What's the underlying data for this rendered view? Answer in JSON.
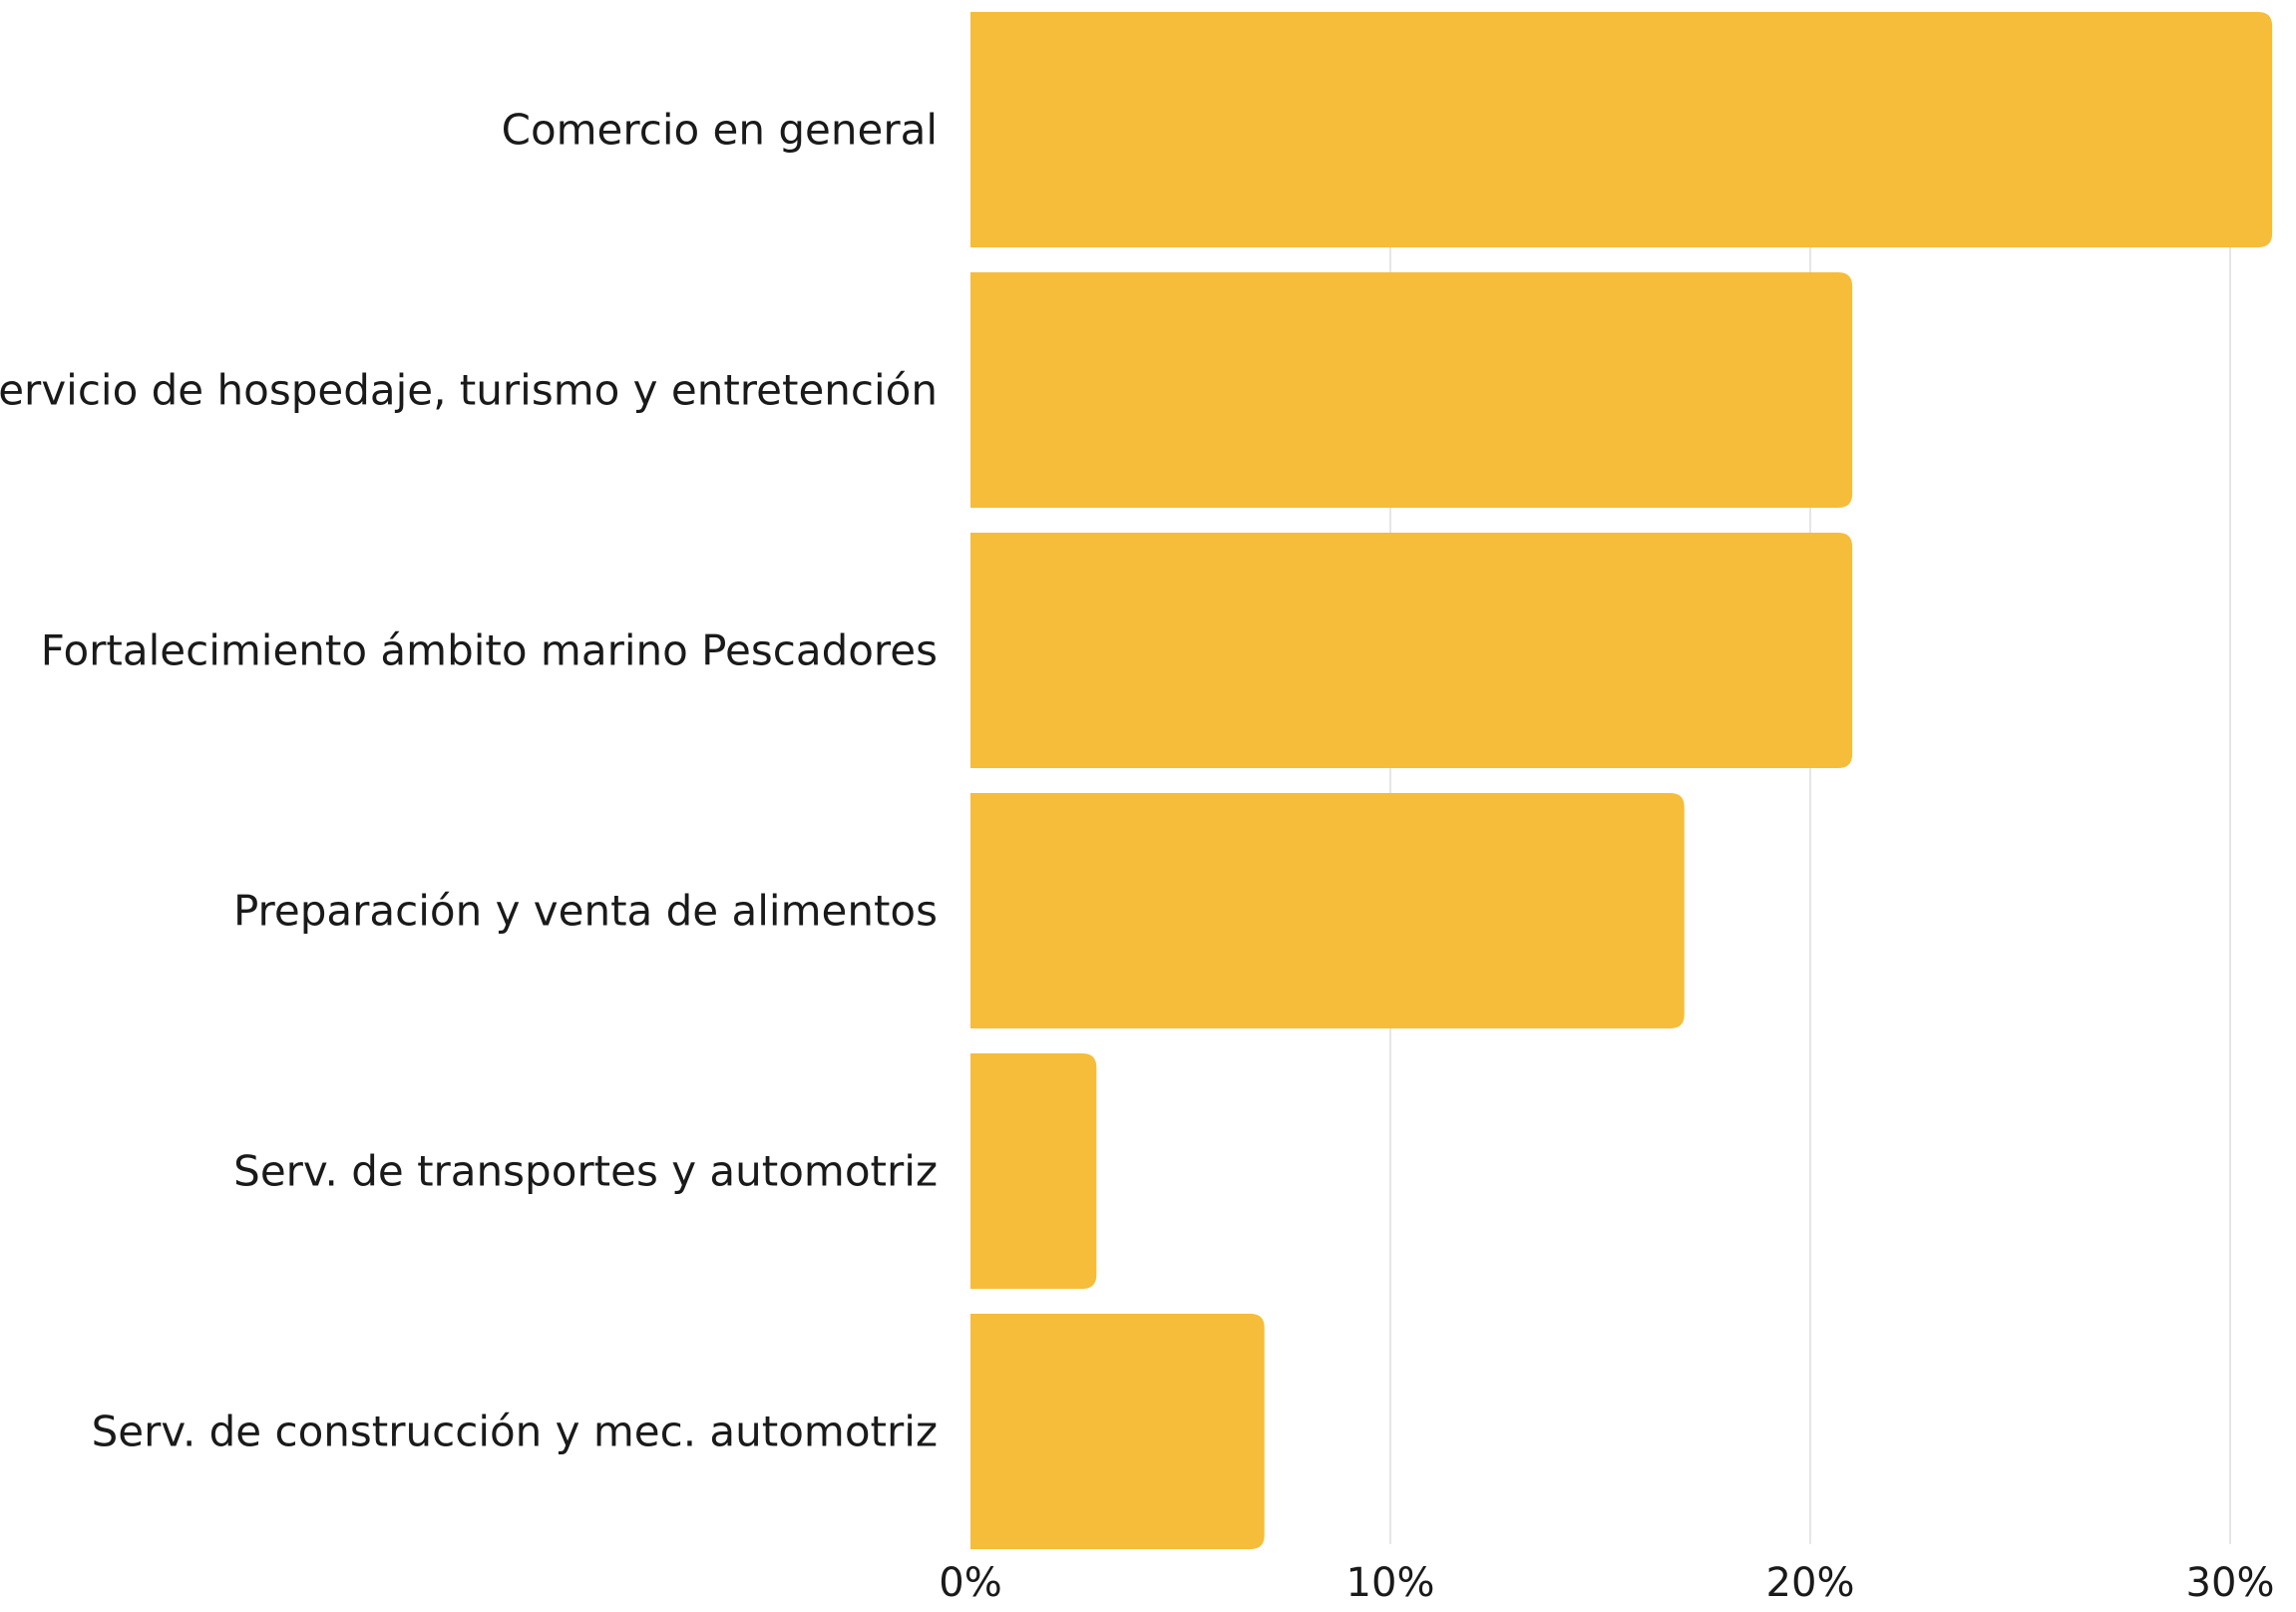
{
  "chart_data": {
    "type": "bar",
    "orientation": "horizontal",
    "title": "",
    "xlabel": "",
    "ylabel": "",
    "categories": [
      "Comercio en general",
      "Servicio de hospedaje, turismo y entretención",
      "Fortalecimiento ámbito marino Pescadores",
      "Preparación y venta de alimentos",
      "Serv. de transportes y automotriz",
      "Serv. de construcción y mec. automotriz"
    ],
    "values": [
      31,
      21,
      21,
      17,
      3,
      7
    ],
    "xlim": [
      0,
      30
    ],
    "x_ticks": [
      0,
      10,
      20,
      30
    ],
    "x_tick_labels": [
      "0%",
      "10%",
      "20%",
      "30%"
    ],
    "grid": "vertical",
    "legend": "none",
    "bar_color": "#F5BD3A",
    "grid_color": "#E6E6E6"
  }
}
